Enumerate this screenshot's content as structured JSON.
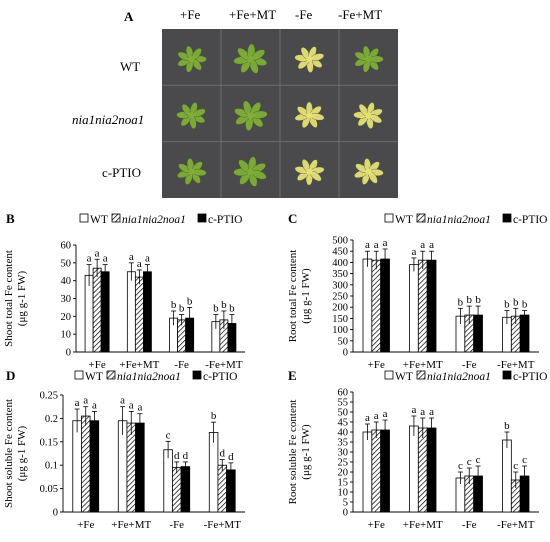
{
  "photo_panel": {
    "letter": "A",
    "columns": [
      "+Fe",
      "+Fe+MT",
      "-Fe",
      "-Fe+MT"
    ],
    "rows": [
      "WT",
      "nia1nia2noa1",
      "c-PTIO"
    ],
    "colors": {
      "background": "#4a4a4d",
      "grid": "#6c6c70",
      "healthy_leaf": "#7fae3a",
      "chlorotic_leaf": "#e6df7a"
    }
  },
  "legend": {
    "items": [
      "WT",
      "nia1nia2noa1",
      "c-PTIO"
    ]
  },
  "chart_data": [
    {
      "panel": "B",
      "type": "bar",
      "ylabel_lines": [
        "Shoot total Fe content",
        "(μg g-1 FW)"
      ],
      "ylim": [
        0,
        60
      ],
      "yticks": [
        "0",
        "10",
        "20",
        "30",
        "40",
        "50",
        "60"
      ],
      "categories": [
        "+Fe",
        "+Fe+MT",
        "-Fe",
        "-Fe+MT"
      ],
      "series": [
        {
          "name": "WT",
          "values": [
            43,
            45,
            19,
            17
          ],
          "errors": [
            6,
            5,
            4,
            4
          ],
          "letters": [
            "a",
            "a",
            "b",
            "b"
          ]
        },
        {
          "name": "nia1nia2noa1",
          "values": [
            47,
            42,
            18,
            18
          ],
          "errors": [
            5,
            4,
            3,
            5
          ],
          "letters": [
            "a",
            "a",
            "b",
            "b"
          ]
        },
        {
          "name": "c-PTIO",
          "values": [
            45,
            45,
            19,
            16
          ],
          "errors": [
            4,
            4,
            6,
            5
          ],
          "letters": [
            "a",
            "a",
            "b",
            "b"
          ]
        }
      ]
    },
    {
      "panel": "C",
      "type": "bar",
      "ylabel_lines": [
        "Root total Fe content",
        "(μg g-1 FW)"
      ],
      "ylim": [
        0,
        500
      ],
      "yticks": [
        "0",
        "50",
        "100",
        "150",
        "200",
        "250",
        "300",
        "350",
        "400",
        "450",
        "500"
      ],
      "categories": [
        "+Fe",
        "+Fe+MT",
        "-Fe",
        "-Fe+MT"
      ],
      "series": [
        {
          "name": "WT",
          "values": [
            415,
            390,
            160,
            155
          ],
          "errors": [
            35,
            30,
            35,
            30
          ],
          "letters": [
            "a",
            "a",
            "b",
            "b"
          ]
        },
        {
          "name": "nia1nia2noa1",
          "values": [
            410,
            410,
            165,
            160
          ],
          "errors": [
            40,
            40,
            40,
            35
          ],
          "letters": [
            "a",
            "a",
            "b",
            "b"
          ]
        },
        {
          "name": "c-PTIO",
          "values": [
            415,
            410,
            165,
            165
          ],
          "errors": [
            45,
            40,
            40,
            20
          ],
          "letters": [
            "a",
            "a",
            "b",
            "b"
          ]
        }
      ]
    },
    {
      "panel": "D",
      "type": "bar",
      "ylabel_lines": [
        "Shoot soluble Fe content",
        "(μg g-1 FW)"
      ],
      "ylim": [
        0,
        0.25
      ],
      "yticks": [
        "0",
        "0.05",
        "0.1",
        "0.15",
        "0.2",
        "0.25"
      ],
      "categories": [
        "+Fe",
        "+Fe+MT",
        "-Fe",
        "-Fe+MT"
      ],
      "series": [
        {
          "name": "WT",
          "values": [
            0.195,
            0.195,
            0.133,
            0.17
          ],
          "errors": [
            0.025,
            0.03,
            0.018,
            0.022
          ],
          "letters": [
            "a",
            "a",
            "c",
            "b"
          ]
        },
        {
          "name": "nia1nia2noa1",
          "values": [
            0.205,
            0.19,
            0.095,
            0.1
          ],
          "errors": [
            0.02,
            0.025,
            0.012,
            0.012
          ],
          "letters": [
            "a",
            "a",
            "d",
            "d"
          ]
        },
        {
          "name": "c-PTIO",
          "values": [
            0.195,
            0.19,
            0.097,
            0.09
          ],
          "errors": [
            0.02,
            0.02,
            0.01,
            0.015
          ],
          "letters": [
            "a",
            "a",
            "d",
            "d"
          ]
        }
      ]
    },
    {
      "panel": "E",
      "type": "bar",
      "ylabel_lines": [
        "Root soluble Fe content",
        "(μg g-1 FW)"
      ],
      "ylim": [
        0,
        60
      ],
      "yticks": [
        "0",
        "5",
        "10",
        "15",
        "20",
        "25",
        "30",
        "35",
        "40",
        "45",
        "50",
        "55",
        "60"
      ],
      "categories": [
        "+Fe",
        "+Fe+MT",
        "-Fe",
        "-Fe+MT"
      ],
      "series": [
        {
          "name": "WT",
          "values": [
            40,
            43,
            17,
            36
          ],
          "errors": [
            4,
            5,
            3,
            4
          ],
          "letters": [
            "a",
            "a",
            "c",
            "b"
          ]
        },
        {
          "name": "nia1nia2noa1",
          "values": [
            41,
            42,
            18,
            16
          ],
          "errors": [
            4,
            5,
            4,
            4
          ],
          "letters": [
            "a",
            "a",
            "c",
            "c"
          ]
        },
        {
          "name": "c-PTIO",
          "values": [
            41,
            42,
            18,
            18
          ],
          "errors": [
            5,
            5,
            5,
            5
          ],
          "letters": [
            "a",
            "a",
            "c",
            "c"
          ]
        }
      ]
    }
  ]
}
